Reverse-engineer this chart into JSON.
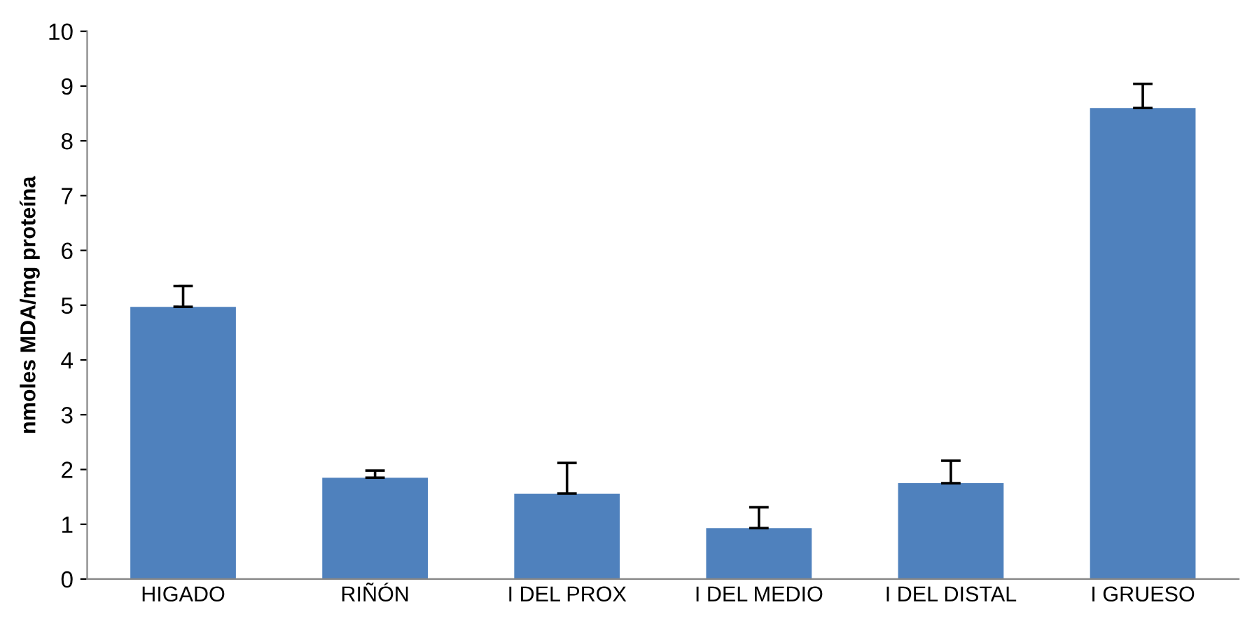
{
  "chart_data": {
    "type": "bar",
    "ylabel": "nmoles MDA/mg proteína",
    "categories": [
      "HIGADO",
      "RIÑÓN",
      "I DEL PROX",
      "I DEL MEDIO",
      "I DEL DISTAL",
      "I GRUESO"
    ],
    "values": [
      4.97,
      1.85,
      1.56,
      0.93,
      1.75,
      8.6
    ],
    "errors": [
      [
        4.97,
        5.35
      ],
      [
        1.85,
        1.98
      ],
      [
        1.56,
        2.12
      ],
      [
        0.93,
        1.31
      ],
      [
        1.75,
        2.16
      ],
      [
        8.6,
        9.04
      ]
    ],
    "color": "#4f81bd",
    "ylim": [
      0,
      10
    ],
    "yticks": [
      0,
      1,
      2,
      3,
      4,
      5,
      6,
      7,
      8,
      9,
      10
    ],
    "grid": false,
    "legend": false
  }
}
